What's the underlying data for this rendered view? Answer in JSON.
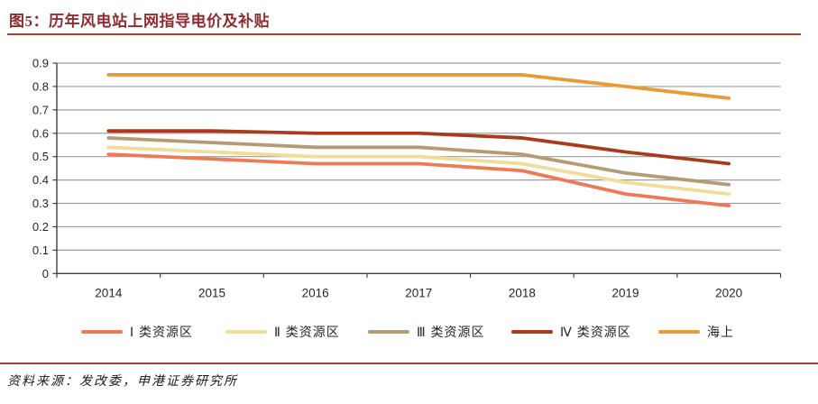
{
  "figure": {
    "title": "图5：历年风电站上网指导电价及补贴",
    "source": "资料来源：发改委，申港证券研究所"
  },
  "colors": {
    "title_text": "#8B2E33",
    "divider_rule": "#A2432E",
    "axis_line": "#404040",
    "gridline": "#9E9E9E",
    "tick_label": "#262626"
  },
  "chart_data": {
    "type": "line",
    "title": "历年风电站上网指导电价及补贴",
    "categories": [
      "2014",
      "2015",
      "2016",
      "2017",
      "2018",
      "2019",
      "2020"
    ],
    "series": [
      {
        "name": "Ⅰ 类资源区",
        "color": "#EC7A57",
        "values": [
          0.51,
          0.49,
          0.47,
          0.47,
          0.44,
          0.34,
          0.29
        ]
      },
      {
        "name": "Ⅱ 类资源区",
        "color": "#EFDD9A",
        "values": [
          0.54,
          0.52,
          0.5,
          0.5,
          0.47,
          0.39,
          0.34
        ]
      },
      {
        "name": "Ⅲ 类资源区",
        "color": "#B49B76",
        "values": [
          0.58,
          0.56,
          0.54,
          0.54,
          0.51,
          0.43,
          0.38
        ]
      },
      {
        "name": "Ⅳ 类资源区",
        "color": "#A93A1C",
        "values": [
          0.61,
          0.61,
          0.6,
          0.6,
          0.58,
          0.52,
          0.47
        ]
      },
      {
        "name": "海上",
        "color": "#E89A35",
        "values": [
          0.85,
          0.85,
          0.85,
          0.85,
          0.85,
          0.8,
          0.75
        ]
      }
    ],
    "xlabel": "",
    "ylabel": "",
    "ylim": [
      0,
      0.9
    ],
    "ytick_step": 0.1,
    "ytick_labels": [
      "0",
      "0.1",
      "0.2",
      "0.3",
      "0.4",
      "0.5",
      "0.6",
      "0.7",
      "0.8",
      "0.9"
    ],
    "grid": true,
    "legend_position": "bottom"
  }
}
